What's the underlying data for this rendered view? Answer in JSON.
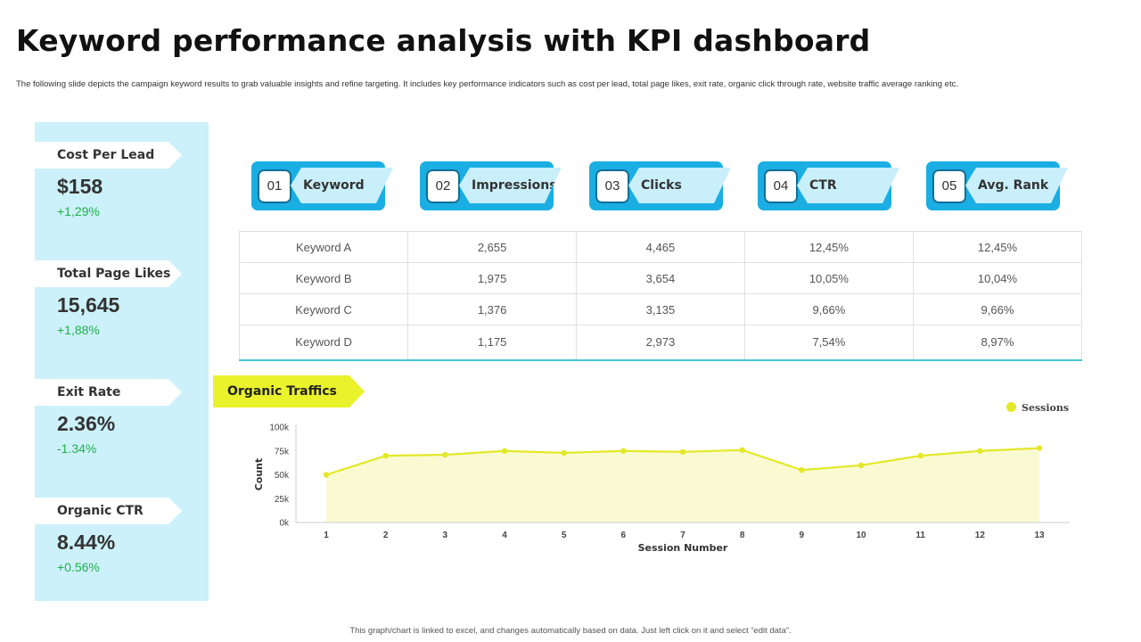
{
  "title": "Keyword performance analysis with KPI dashboard",
  "subtitle": "The following slide depicts the campaign keyword results to grab  valuable insights and refine targeting. It includes key performance indicators such as cost per lead, total page likes, exit rate, organic click through rate, website traffic average ranking etc.",
  "kpis": [
    {
      "label": "Cost Per Lead",
      "value": "$158",
      "change": "+1,29%"
    },
    {
      "label": "Total Page Likes",
      "value": "15,645",
      "change": "+1,88%"
    },
    {
      "label": "Exit Rate",
      "value": "2.36%",
      "change": "-1.34%"
    },
    {
      "label": "Organic CTR",
      "value": "8.44%",
      "change": "+0.56%"
    }
  ],
  "tabs": [
    {
      "num": "01",
      "label": "Keyword"
    },
    {
      "num": "02",
      "label": "Impressions"
    },
    {
      "num": "03",
      "label": "Clicks"
    },
    {
      "num": "04",
      "label": "CTR"
    },
    {
      "num": "05",
      "label": "Avg. Rank"
    }
  ],
  "table": {
    "rows": [
      [
        "Keyword A",
        "2,655",
        "4,465",
        "12,45%",
        "12,45%"
      ],
      [
        "Keyword B",
        "1,975",
        "3,654",
        "10,05%",
        "10,04%"
      ],
      [
        "Keyword C",
        "1,376",
        "3,135",
        "9,66%",
        "9,66%"
      ],
      [
        "Keyword D",
        "1,175",
        "2,973",
        "7,54%",
        "8,97%"
      ]
    ]
  },
  "organic_label": "Organic Traffics",
  "chart_data": {
    "type": "area",
    "x": [
      1,
      2,
      3,
      4,
      5,
      6,
      7,
      8,
      9,
      10,
      11,
      12,
      13
    ],
    "series": [
      {
        "name": "Sessions",
        "values": [
          50000,
          70000,
          71000,
          75000,
          73000,
          75000,
          74000,
          76000,
          55000,
          60000,
          70000,
          75000,
          78000
        ]
      }
    ],
    "xlabel": "Session Number",
    "ylabel": "Count",
    "ylim": [
      0,
      100000
    ],
    "yticks": [
      "0k",
      "25k",
      "50k",
      "75k",
      "100k"
    ],
    "legend_position": "top-right",
    "grid": false,
    "colors": {
      "line": "#e3e827",
      "fill": "#fafad2"
    }
  },
  "footer": "This graph/chart is linked to excel, and changes automatically based on data. Just left click on it and select “edit data”."
}
